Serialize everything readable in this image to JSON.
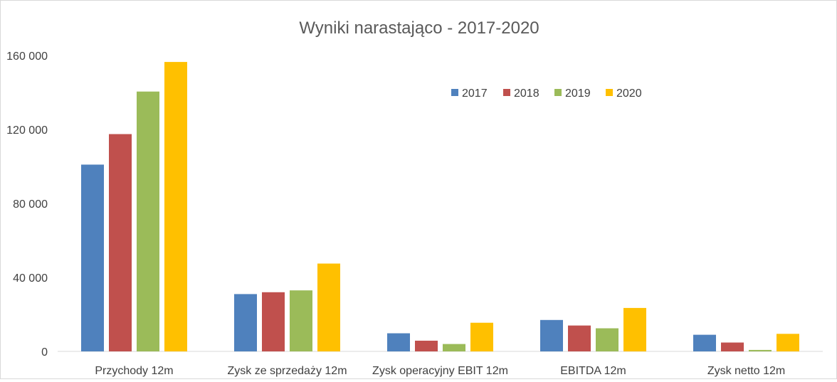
{
  "chart_data": {
    "type": "bar",
    "title": "Wyniki narastająco - 2017-2020",
    "categories": [
      "Przychody 12m",
      "Zysk ze sprzedaży 12m",
      "Zysk operacyjny EBIT 12m",
      "EBITDA 12m",
      "Zysk netto 12m"
    ],
    "series": [
      {
        "name": "2017",
        "color": "#4f81bd",
        "values": [
          101000,
          31000,
          9800,
          17000,
          9000
        ]
      },
      {
        "name": "2018",
        "color": "#c0504d",
        "values": [
          117500,
          32000,
          5800,
          14000,
          4800
        ]
      },
      {
        "name": "2019",
        "color": "#9bbb59",
        "values": [
          140500,
          33000,
          4000,
          12500,
          800
        ]
      },
      {
        "name": "2020",
        "color": "#ffc000",
        "values": [
          156500,
          47500,
          15500,
          23500,
          9500
        ]
      }
    ],
    "ylim": [
      0,
      160000
    ],
    "yticks": [
      0,
      40000,
      80000,
      120000,
      160000
    ],
    "ytick_labels": [
      "0",
      "40 000",
      "80 000",
      "120 000",
      "160 000"
    ],
    "grid": false,
    "legend_position": "top-right"
  }
}
